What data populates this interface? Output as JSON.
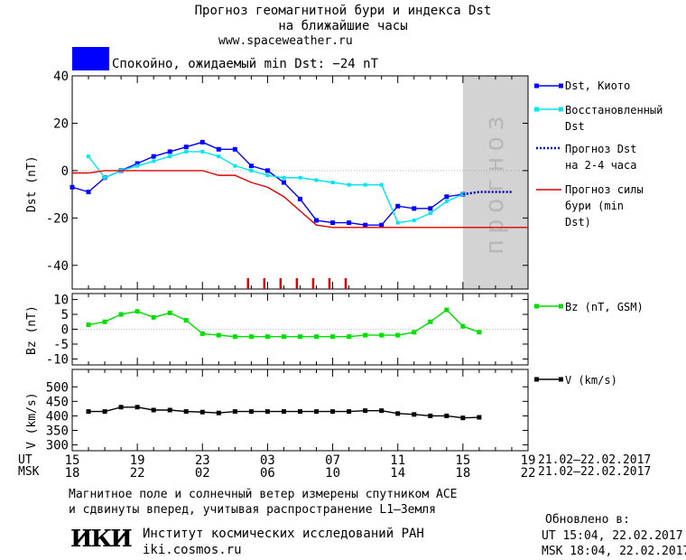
{
  "header": {
    "title_line1": "Прогноз геомагнитной бури и индекса Dst",
    "title_line2": "на ближайшие часы",
    "url": "www.spaceweather.ru"
  },
  "status": {
    "text": "Спокойно, ожидаемый min Dst: −24 nT",
    "color": "#0000ff"
  },
  "chart_data": [
    {
      "type": "line",
      "panel": "dst",
      "ylabel": "Dst (nT)",
      "ylim": [
        -50,
        40
      ],
      "yticks": [
        40,
        20,
        0,
        -20,
        -40
      ],
      "xlim": [
        15,
        43
      ],
      "forecast_region": {
        "x_from": 39,
        "x_to": 43,
        "label": "прогноз",
        "color": "#d3d3d3"
      },
      "storm_markers_x": [
        25.8,
        26.8,
        27.8,
        28.8,
        29.8,
        30.8,
        31.8
      ],
      "series": [
        {
          "name": "Dst, Киото",
          "color": "#0000ff",
          "x": [
            15,
            16,
            17,
            18,
            19,
            20,
            21,
            22,
            23,
            24,
            25,
            26,
            27,
            28,
            29,
            30,
            31,
            32,
            33,
            34,
            35,
            36,
            37,
            38,
            39
          ],
          "y": [
            -7,
            -9,
            -3,
            0,
            3,
            6,
            8,
            10,
            12,
            9,
            9,
            2,
            0,
            -5,
            -12,
            -21,
            -22,
            -22,
            -23,
            -23,
            -15,
            -16,
            -16,
            -11,
            -10
          ]
        },
        {
          "name": "Восстановленный Dst",
          "color": "#00e5ee",
          "x": [
            16,
            17,
            18,
            19,
            20,
            21,
            22,
            23,
            24,
            25,
            26,
            27,
            28,
            29,
            30,
            31,
            32,
            33,
            34,
            35,
            36,
            37,
            38,
            39
          ],
          "y": [
            6,
            -3,
            0,
            2,
            4,
            6,
            8,
            8,
            6,
            2,
            0,
            -2,
            -3,
            -3,
            -4,
            -5,
            -6,
            -6,
            -6,
            -22,
            -21,
            -18,
            -13,
            -10
          ]
        },
        {
          "name": "Прогноз Dst на 2-4 часа",
          "color": "#0000cc",
          "style": "dotted",
          "x": [
            39,
            40,
            41,
            42
          ],
          "y": [
            -10,
            -9,
            -9,
            -9
          ]
        },
        {
          "name": "Прогноз силы бури (min Dst)",
          "color": "#dd0000",
          "x": [
            15,
            16,
            17,
            18,
            19,
            20,
            21,
            22,
            23,
            24,
            25,
            26,
            27,
            28,
            29,
            30,
            31,
            32,
            33,
            34,
            35,
            36,
            37,
            38,
            39,
            40,
            41,
            42,
            43
          ],
          "y": [
            -1,
            -1,
            0,
            0,
            0,
            0,
            0,
            0,
            0,
            -2,
            -2,
            -5,
            -7,
            -11,
            -17,
            -23,
            -24,
            -24,
            -24,
            -24,
            -24,
            -24,
            -24,
            -24,
            -24,
            -24,
            -24,
            -24,
            -24
          ]
        }
      ]
    },
    {
      "type": "line",
      "panel": "bz",
      "ylabel": "Bz (nT)",
      "ylim": [
        -12,
        12
      ],
      "yticks": [
        10,
        5,
        0,
        -5,
        -10
      ],
      "xlim": [
        15,
        43
      ],
      "series": [
        {
          "name": "Bz (nT, GSM)",
          "color": "#00dd00",
          "x": [
            16,
            17,
            18,
            19,
            20,
            21,
            22,
            23,
            24,
            25,
            26,
            27,
            28,
            29,
            30,
            31,
            32,
            33,
            34,
            35,
            36,
            37,
            38,
            39,
            40
          ],
          "y": [
            1.5,
            2.5,
            5,
            6,
            4,
            5.5,
            3,
            -1.5,
            -2,
            -2.5,
            -2.5,
            -2.5,
            -2.5,
            -2.5,
            -2.5,
            -2.5,
            -2.5,
            -2,
            -2,
            -2,
            -1,
            2.5,
            6.5,
            1,
            -1
          ]
        }
      ]
    },
    {
      "type": "line",
      "panel": "v",
      "ylabel": "V (km/s)",
      "ylim": [
        280,
        560
      ],
      "yticks": [
        500,
        450,
        400,
        350,
        300
      ],
      "xlim": [
        15,
        43
      ],
      "series": [
        {
          "name": "V (km/s)",
          "color": "#000000",
          "x": [
            16,
            17,
            18,
            19,
            20,
            21,
            22,
            23,
            24,
            25,
            26,
            27,
            28,
            29,
            30,
            31,
            32,
            33,
            34,
            35,
            36,
            37,
            38,
            39,
            40
          ],
          "y": [
            415,
            415,
            430,
            430,
            420,
            420,
            415,
            413,
            410,
            415,
            415,
            415,
            415,
            415,
            415,
            415,
            415,
            418,
            418,
            408,
            405,
            400,
            400,
            393,
            395
          ]
        }
      ]
    }
  ],
  "x_axis": {
    "ut_label": "UT",
    "msk_label": "MSK",
    "ut_ticks": [
      "15",
      "19",
      "23",
      "03",
      "07",
      "11",
      "15",
      "19"
    ],
    "msk_ticks": [
      "18",
      "22",
      "02",
      "06",
      "10",
      "14",
      "18",
      "22"
    ],
    "date_range_ut": "21.02–22.02.2017",
    "date_range_msk": "21.02–22.02.2017"
  },
  "footer": {
    "note_line1": "Магнитное поле и солнечный ветер измерены спутником ACE",
    "note_line2": "и сдвинуты вперед, учитывая распространение L1–Земля",
    "updated_label": "Обновлено в:",
    "updated_ut": "UT  15:04, 22.02.2017",
    "updated_msk": "MSK 18:04, 22.02.2017",
    "institute": "Институт космических исследований РАН",
    "site": "iki.cosmos.ru",
    "logo_text": "ИКИ"
  }
}
